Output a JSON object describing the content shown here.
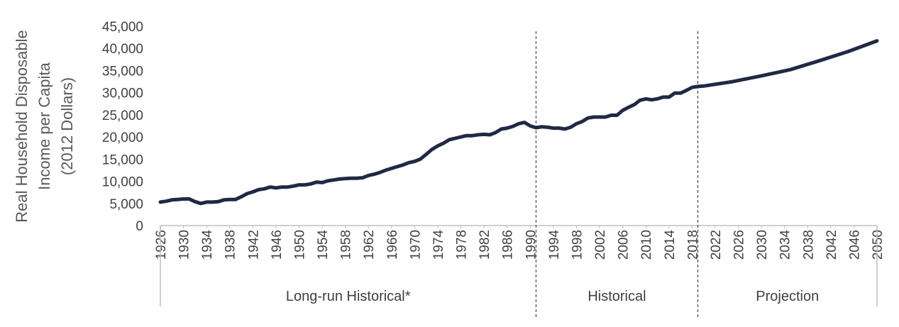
{
  "chart_data": {
    "type": "line",
    "ylabel_lines": [
      "Real Household Disposable",
      "Income per Capita",
      "(2012 Dollars)"
    ],
    "ylim": [
      0,
      45000
    ],
    "yticks": [
      "0",
      "5,000",
      "10,000",
      "15,000",
      "20,000",
      "25,000",
      "30,000",
      "35,000",
      "40,000",
      "45,000"
    ],
    "xlim": [
      1926,
      2050
    ],
    "xticks": [
      "1926",
      "1930",
      "1934",
      "1938",
      "1942",
      "1946",
      "1950",
      "1954",
      "1958",
      "1962",
      "1966",
      "1970",
      "1974",
      "1978",
      "1982",
      "1986",
      "1990",
      "1994",
      "1998",
      "2002",
      "2006",
      "2010",
      "2014",
      "2018",
      "2022",
      "2026",
      "2030",
      "2034",
      "2038",
      "2042",
      "2046",
      "2050"
    ],
    "grid": false,
    "legend": "none",
    "line_color": "#1f2a44",
    "regions": [
      {
        "label": "Long-run Historical*",
        "start": 1926,
        "end": 1991
      },
      {
        "label": "Historical",
        "start": 1991,
        "end": 2019
      },
      {
        "label": "Projection",
        "start": 2019,
        "end": 2050
      }
    ],
    "series": [
      {
        "x": [
          1926,
          1927,
          1928,
          1929,
          1930,
          1931,
          1932,
          1933,
          1934,
          1935,
          1936,
          1937,
          1938,
          1939,
          1940,
          1941,
          1942,
          1943,
          1944,
          1945,
          1946,
          1947,
          1948,
          1949,
          1950,
          1951,
          1952,
          1953,
          1954,
          1955,
          1956,
          1957,
          1958,
          1959,
          1960,
          1961,
          1962,
          1963,
          1964,
          1965,
          1966,
          1967,
          1968,
          1969,
          1970,
          1971,
          1972,
          1973,
          1974,
          1975,
          1976,
          1977,
          1978,
          1979,
          1980,
          1981,
          1982,
          1983,
          1984,
          1985,
          1986,
          1987,
          1988,
          1989,
          1990,
          1991,
          1992,
          1993,
          1994,
          1995,
          1996,
          1997,
          1998,
          1999,
          2000,
          2001,
          2002,
          2003,
          2004,
          2005,
          2006,
          2007,
          2008,
          2009,
          2010,
          2011,
          2012,
          2013,
          2014,
          2015,
          2016,
          2017,
          2018,
          2019,
          2020,
          2025,
          2030,
          2035,
          2040,
          2045,
          2050
        ],
        "y": [
          5300,
          5500,
          5800,
          5900,
          6000,
          6000,
          5400,
          5000,
          5300,
          5300,
          5400,
          5800,
          5900,
          5900,
          6500,
          7200,
          7600,
          8100,
          8300,
          8700,
          8500,
          8700,
          8700,
          8900,
          9200,
          9200,
          9400,
          9800,
          9700,
          10100,
          10300,
          10500,
          10600,
          10700,
          10700,
          10800,
          11300,
          11600,
          12000,
          12500,
          12900,
          13300,
          13700,
          14200,
          14500,
          15000,
          16100,
          17200,
          18000,
          18600,
          19400,
          19700,
          20000,
          20300,
          20300,
          20500,
          20600,
          20500,
          21000,
          21800,
          22000,
          22400,
          23000,
          23300,
          22500,
          22100,
          22300,
          22200,
          22000,
          22000,
          21800,
          22200,
          23000,
          23500,
          24300,
          24500,
          24500,
          24500,
          24900,
          24900,
          26000,
          26700,
          27300,
          28300,
          28600,
          28400,
          28600,
          29000,
          29000,
          29900,
          29900,
          30500,
          31200,
          31400,
          31500,
          32500,
          33800,
          35200,
          37200,
          39300,
          41700
        ]
      }
    ]
  }
}
